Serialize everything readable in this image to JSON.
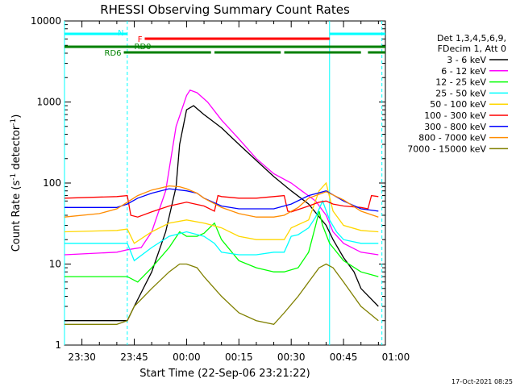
{
  "chart_data": {
    "type": "line",
    "title": "RHESSI Observing Summary Count Rates",
    "xlabel": "Start Time (22-Sep-06 23:21:22)",
    "ylabel_main": "Count Rate (s",
    "ylabel_exp1": "-1",
    "ylabel_mid": " detector",
    "ylabel_exp2": "-1",
    "ylabel_end": ")",
    "y_scale": "log",
    "ylim": [
      1,
      10000
    ],
    "xlim_minutes": [
      -35,
      57
    ],
    "x_ticks": [
      {
        "m": -30,
        "label": "23:30"
      },
      {
        "m": -15,
        "label": "23:45"
      },
      {
        "m": 0,
        "label": "00:00"
      },
      {
        "m": 15,
        "label": "00:15"
      },
      {
        "m": 30,
        "label": "00:30"
      },
      {
        "m": 45,
        "label": "00:45"
      },
      {
        "m": 60,
        "label": "01:00"
      }
    ],
    "y_ticks": [
      {
        "v": 1,
        "label": "1"
      },
      {
        "v": 10,
        "label": "10"
      },
      {
        "v": 100,
        "label": "100"
      },
      {
        "v": 1000,
        "label": "1000"
      },
      {
        "v": 10000,
        "label": "10000"
      }
    ],
    "legend_header": [
      "Det 1,3,4,5,6,9,",
      "FDecim 1, Att 0"
    ],
    "legend_position": "top-right outside",
    "footer_date": "17-Oct-2021 08:25",
    "flags": [
      {
        "label": "N",
        "color": "#00ffff",
        "segments": [
          [
            -35,
            -17
          ],
          [
            41,
            57
          ]
        ]
      },
      {
        "label": "F",
        "color": "#ff0000",
        "segments": [
          [
            -12,
            41
          ]
        ]
      },
      {
        "label": "RD0",
        "color": "#008000",
        "segments": [
          [
            -35,
            57
          ]
        ]
      },
      {
        "label": "RD6",
        "color": "#008000",
        "segments": [
          [
            -18,
            7
          ],
          [
            8,
            27
          ],
          [
            28,
            50
          ],
          [
            52,
            57
          ]
        ]
      }
    ],
    "vlines": [
      {
        "m": -35,
        "color": "#00ffff",
        "dash": false
      },
      {
        "m": -17,
        "color": "#00ffff",
        "dash": true
      },
      {
        "m": 41,
        "color": "#00ffff",
        "dash": false
      },
      {
        "m": 56,
        "color": "#00ffff",
        "dash": true
      }
    ],
    "series": [
      {
        "name": "3 - 6 keV",
        "color": "#000000",
        "x": [
          -35,
          -17,
          -15,
          -10,
          -6,
          -3,
          -2,
          0,
          2,
          5,
          10,
          15,
          20,
          25,
          30,
          35,
          40,
          42,
          45,
          48,
          50,
          55
        ],
        "y": [
          2,
          2,
          3,
          8,
          25,
          90,
          300,
          800,
          900,
          700,
          480,
          300,
          190,
          120,
          80,
          55,
          30,
          20,
          12,
          8,
          5,
          3
        ]
      },
      {
        "name": "6 - 12 keV",
        "color": "#ff00ff",
        "x": [
          -35,
          -20,
          -17,
          -13,
          -10,
          -6,
          -3,
          0,
          1,
          3,
          6,
          10,
          15,
          20,
          25,
          30,
          33,
          37,
          40,
          42,
          45,
          50,
          55
        ],
        "y": [
          13,
          14,
          15,
          16,
          25,
          80,
          500,
          1200,
          1400,
          1300,
          1000,
          600,
          350,
          200,
          130,
          100,
          80,
          60,
          40,
          25,
          18,
          14,
          13
        ]
      },
      {
        "name": "12 - 25 keV",
        "color": "#00ff00",
        "x": [
          -35,
          -20,
          -17,
          -14,
          -10,
          -5,
          -2,
          0,
          3,
          5,
          8,
          10,
          15,
          20,
          25,
          28,
          32,
          35,
          37,
          38,
          39,
          41,
          45,
          50,
          55
        ],
        "y": [
          7,
          7,
          7,
          6,
          9,
          16,
          25,
          22,
          22,
          24,
          32,
          20,
          11,
          9,
          8,
          8,
          9,
          14,
          30,
          45,
          30,
          18,
          11,
          8,
          7
        ]
      },
      {
        "name": "25 - 50 keV",
        "color": "#00ffff",
        "x": [
          -35,
          -20,
          -17,
          -15,
          -10,
          -5,
          0,
          5,
          8,
          10,
          15,
          20,
          25,
          28,
          30,
          32,
          35,
          37,
          39,
          41,
          43,
          45,
          50,
          55
        ],
        "y": [
          18,
          18,
          18,
          11,
          16,
          22,
          25,
          22,
          18,
          14,
          13,
          13,
          14,
          14,
          22,
          23,
          28,
          38,
          60,
          35,
          25,
          20,
          18,
          18
        ]
      },
      {
        "name": "50 - 100 keV",
        "color": "#ffd700",
        "x": [
          -35,
          -20,
          -17,
          -15,
          -10,
          -5,
          0,
          5,
          10,
          15,
          20,
          25,
          28,
          30,
          35,
          38,
          40,
          42,
          45,
          50,
          55
        ],
        "y": [
          25,
          26,
          27,
          18,
          25,
          32,
          35,
          32,
          28,
          22,
          20,
          20,
          20,
          28,
          35,
          80,
          100,
          45,
          30,
          26,
          25
        ]
      },
      {
        "name": "100 - 300 keV",
        "color": "#ff0000",
        "x": [
          -35,
          -20,
          -17,
          -16,
          -14,
          -10,
          -5,
          0,
          5,
          8,
          9,
          10,
          15,
          20,
          25,
          28,
          29,
          30,
          35,
          38,
          40,
          42,
          45,
          50,
          52,
          53,
          55
        ],
        "y": [
          65,
          68,
          70,
          40,
          38,
          44,
          52,
          58,
          52,
          45,
          70,
          68,
          65,
          65,
          68,
          70,
          45,
          44,
          52,
          58,
          60,
          55,
          52,
          50,
          48,
          70,
          68
        ]
      },
      {
        "name": "300 - 800 keV",
        "color": "#0000ff",
        "x": [
          -35,
          -25,
          -20,
          -17,
          -14,
          -10,
          -5,
          0,
          3,
          5,
          10,
          15,
          20,
          25,
          30,
          35,
          40,
          45,
          50,
          55
        ],
        "y": [
          50,
          50,
          50,
          55,
          65,
          75,
          85,
          80,
          75,
          65,
          52,
          48,
          48,
          48,
          55,
          70,
          80,
          60,
          48,
          45
        ]
      },
      {
        "name": "800 - 7000 keV",
        "color": "#ff8c00",
        "x": [
          -35,
          -25,
          -20,
          -17,
          -14,
          -10,
          -5,
          -2,
          0,
          3,
          5,
          10,
          15,
          20,
          25,
          28,
          32,
          35,
          40,
          45,
          50,
          55
        ],
        "y": [
          38,
          42,
          48,
          58,
          70,
          82,
          92,
          90,
          85,
          75,
          65,
          50,
          42,
          38,
          38,
          40,
          50,
          65,
          78,
          62,
          45,
          38
        ]
      },
      {
        "name": "7000 - 15000 keV",
        "color": "#808000",
        "x": [
          -35,
          -20,
          -17,
          -15,
          -10,
          -5,
          -2,
          0,
          3,
          5,
          10,
          15,
          20,
          25,
          28,
          32,
          35,
          38,
          40,
          42,
          45,
          50,
          55
        ],
        "y": [
          1.8,
          1.8,
          2,
          3,
          5,
          8,
          10,
          10,
          9,
          7,
          4,
          2.5,
          2,
          1.8,
          2.5,
          4,
          6,
          9,
          10,
          9,
          6,
          3,
          2
        ]
      }
    ]
  }
}
